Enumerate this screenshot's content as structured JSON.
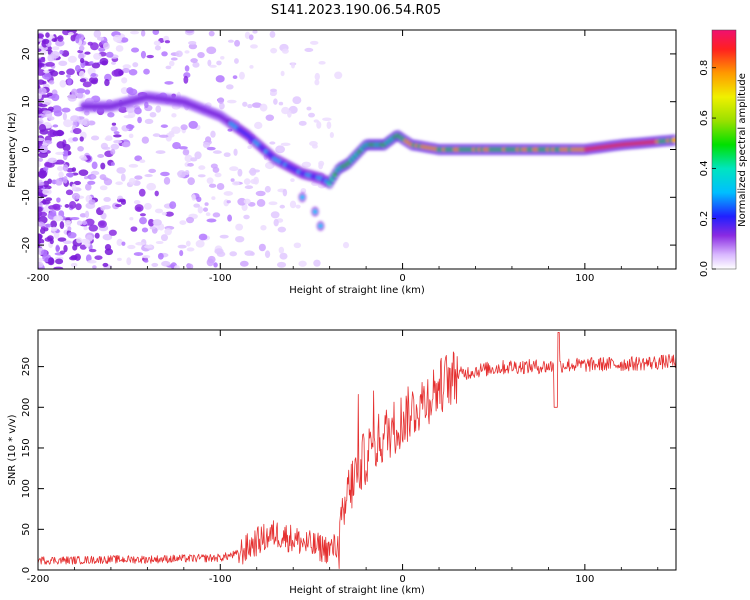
{
  "title": "S141.2023.190.06.54.R05",
  "chart_data": [
    {
      "type": "heatmap",
      "xlabel": "Height of straight line (km)",
      "ylabel": "Frequency (Hz)",
      "xlim": [
        -200,
        150
      ],
      "ylim": [
        -25,
        25
      ],
      "xticks": [
        -200,
        -100,
        0,
        100
      ],
      "yticks": [
        -20,
        -10,
        0,
        10,
        20
      ],
      "colorbar": {
        "label": "Normalized spectral amplitude",
        "range": [
          0,
          0.95
        ],
        "ticks": [
          "0.0",
          "0.2",
          "0.4",
          "0.6",
          "0.8"
        ],
        "colormap": "rainbow (purple to red)"
      },
      "ridge": [
        {
          "x": -160,
          "y": 9
        },
        {
          "x": -140,
          "y": 11
        },
        {
          "x": -120,
          "y": 10
        },
        {
          "x": -100,
          "y": 7
        },
        {
          "x": -85,
          "y": 3
        },
        {
          "x": -70,
          "y": -2
        },
        {
          "x": -55,
          "y": -5
        },
        {
          "x": -45,
          "y": -6
        },
        {
          "x": -40,
          "y": -7
        },
        {
          "x": -35,
          "y": -4
        },
        {
          "x": -30,
          "y": -3
        },
        {
          "x": -20,
          "y": 1
        },
        {
          "x": -10,
          "y": 1
        },
        {
          "x": -3,
          "y": 3
        },
        {
          "x": 5,
          "y": 1
        },
        {
          "x": 20,
          "y": 0
        },
        {
          "x": 50,
          "y": 0
        },
        {
          "x": 80,
          "y": 0
        },
        {
          "x": 100,
          "y": 0
        },
        {
          "x": 120,
          "y": 1
        },
        {
          "x": 150,
          "y": 2
        }
      ],
      "side_branch": [
        {
          "x": -55,
          "y": -10
        },
        {
          "x": -48,
          "y": -13
        },
        {
          "x": -45,
          "y": -16
        }
      ]
    },
    {
      "type": "line",
      "xlabel": "Height of straight line (km)",
      "ylabel": "SNR (10 * v/v)",
      "xlim": [
        -200,
        150
      ],
      "ylim": [
        0,
        295
      ],
      "xticks": [
        -200,
        -100,
        0,
        100
      ],
      "yticks": [
        0,
        50,
        100,
        150,
        200,
        250
      ],
      "color": "#e53030",
      "series": [
        {
          "x": [
            -200,
            -180,
            -160,
            -140,
            -120,
            -100,
            -90,
            -80,
            -70,
            -60,
            -50,
            -40,
            -35,
            -30,
            -25,
            -20,
            -15,
            -10,
            -5,
            0,
            5,
            10,
            15,
            20,
            25,
            30,
            40,
            50,
            60,
            70,
            80,
            90,
            100,
            110,
            120,
            130,
            140,
            150
          ],
          "values": [
            12,
            12,
            13,
            13,
            14,
            15,
            20,
            35,
            45,
            38,
            30,
            25,
            30,
            95,
            120,
            140,
            155,
            165,
            175,
            185,
            195,
            205,
            215,
            225,
            235,
            240,
            245,
            248,
            250,
            250,
            250,
            252,
            252,
            253,
            253,
            254,
            255,
            257
          ]
        }
      ]
    }
  ]
}
